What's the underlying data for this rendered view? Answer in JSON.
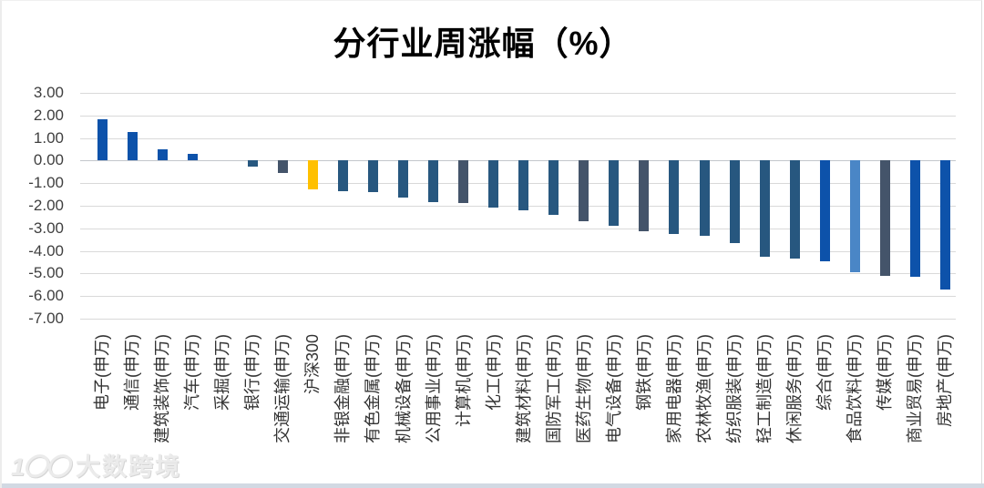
{
  "watermark": {
    "logo": "1〇〇",
    "text": "大数跨境"
  },
  "chart_data": {
    "type": "bar",
    "title": "分行业周涨幅（%）",
    "xlabel": "",
    "ylabel": "",
    "ylim": [
      -7,
      3
    ],
    "grid": true,
    "legend": "none",
    "y_ticks": [
      "3.00",
      "2.00",
      "1.00",
      "0.00",
      "-1.00",
      "-2.00",
      "-3.00",
      "-4.00",
      "-5.00",
      "-6.00",
      "-7.00"
    ],
    "categories": [
      "电子(申万)",
      "通信(申万)",
      "建筑装饰(申万)",
      "汽车(申万)",
      "采掘(申万)",
      "银行(申万)",
      "交通运输(申万)",
      "沪深300",
      "非银金融(申万)",
      "有色金属(申万)",
      "机械设备(申万)",
      "公用事业(申万)",
      "计算机(申万)",
      "化工(申万)",
      "建筑材料(申万)",
      "国防军工(申万)",
      "医药生物(申万)",
      "电气设备(申万)",
      "钢铁(申万)",
      "家用电器(申万)",
      "农林牧渔(申万)",
      "纺织服装(申万)",
      "轻工制造(申万)",
      "休闲服务(申万)",
      "综合(申万)",
      "食品饮料(申万)",
      "传媒(申万)",
      "商业贸易(申万)",
      "房地产(申万)"
    ],
    "values": [
      1.85,
      1.27,
      0.5,
      0.32,
      0.0,
      -0.25,
      -0.56,
      -1.27,
      -1.35,
      -1.4,
      -1.65,
      -1.83,
      -1.9,
      -2.1,
      -2.2,
      -2.4,
      -2.7,
      -2.9,
      -3.13,
      -3.25,
      -3.35,
      -3.65,
      -4.25,
      -4.35,
      -4.45,
      -4.95,
      -5.1,
      -5.15,
      -5.7
    ],
    "bar_colors": [
      "#0d52aa",
      "#0d52aa",
      "#0d52aa",
      "#0d52aa",
      "#27577f",
      "#27577f",
      "#44546a",
      "#ffc000",
      "#27577f",
      "#27577f",
      "#27577f",
      "#27577f",
      "#44546a",
      "#27577f",
      "#27577f",
      "#27577f",
      "#44546a",
      "#27577f",
      "#44546a",
      "#27577f",
      "#27577f",
      "#27577f",
      "#27577f",
      "#27577f",
      "#0d52aa",
      "#4a86c6",
      "#44546a",
      "#0d52aa",
      "#0d52aa"
    ],
    "palette": {
      "royal_blue": "#0d52aa",
      "navy_blue": "#27577f",
      "slate_blue_gray": "#44546a",
      "light_blue": "#4a86c6",
      "benchmark_gold": "#ffc000",
      "gridline_gray": "#d9d9d9"
    },
    "highlighted_category": "沪深300"
  }
}
